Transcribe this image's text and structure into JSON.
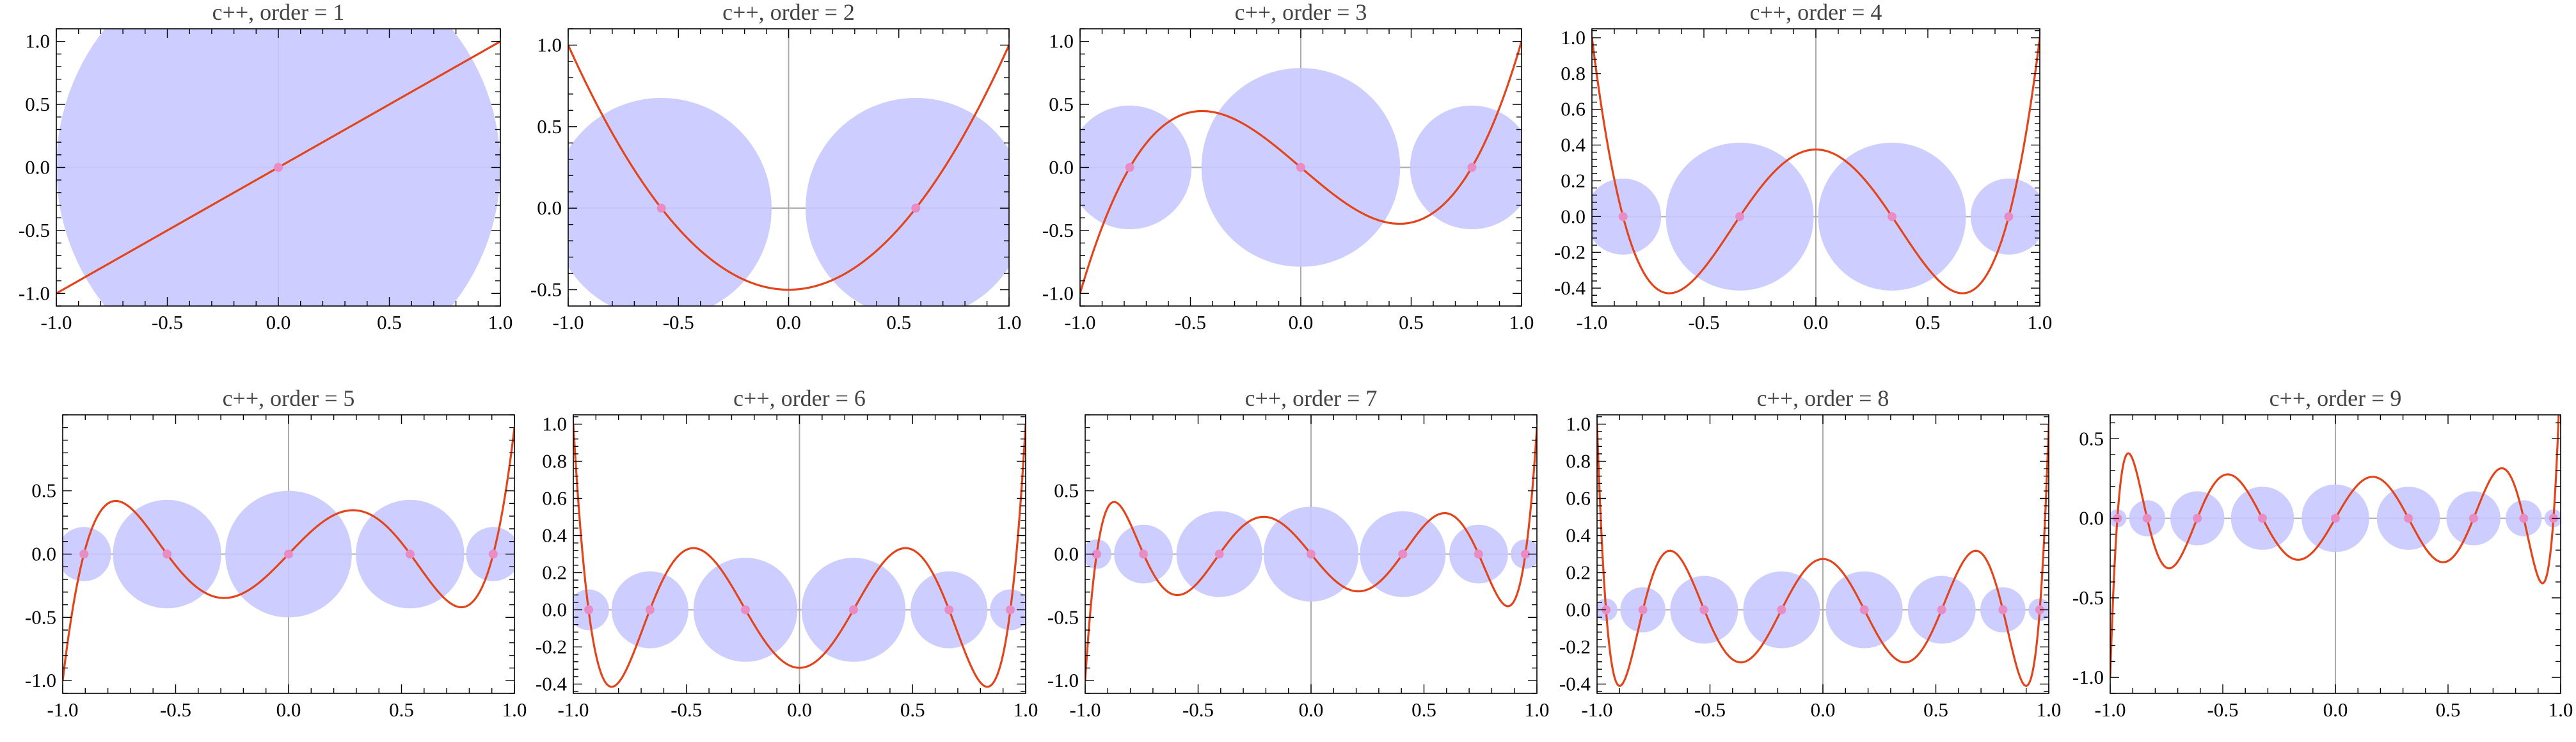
{
  "colors": {
    "curve": "#e2451c",
    "circle": "#c8c8ff",
    "root": "#ea8cc4",
    "axis": "#aaaaaa",
    "frame": "#000000"
  },
  "chart_data": [
    {
      "type": "line",
      "title": "c++, order = 1",
      "order": 1,
      "xlim": [
        -1.0,
        1.0
      ],
      "ylim": [
        -1.1,
        1.1
      ],
      "x_ticks": [
        "-1.0",
        "-0.5",
        "0.0",
        "0.5",
        "1.0"
      ],
      "y_ticks": [
        "-1.0",
        "-0.5",
        "0.0",
        "0.5",
        "1.0"
      ],
      "roots": [
        0.0
      ],
      "circle_radii": [
        1.0
      ]
    },
    {
      "type": "line",
      "title": "c++, order = 2",
      "order": 2,
      "xlim": [
        -1.0,
        1.0
      ],
      "ylim": [
        -0.6,
        1.1
      ],
      "x_ticks": [
        "-1.0",
        "-0.5",
        "0.0",
        "0.5",
        "1.0"
      ],
      "y_ticks": [
        "-0.5",
        "0.0",
        "0.5",
        "1.0"
      ],
      "roots": [
        -0.577,
        0.577
      ],
      "circle_radii": [
        0.5,
        0.5
      ]
    },
    {
      "type": "line",
      "title": "c++, order = 3",
      "order": 3,
      "xlim": [
        -1.0,
        1.0
      ],
      "ylim": [
        -1.1,
        1.1
      ],
      "x_ticks": [
        "-1.0",
        "-0.5",
        "0.0",
        "0.5",
        "1.0"
      ],
      "y_ticks": [
        "-1.0",
        "-0.5",
        "0.0",
        "0.5",
        "1.0"
      ],
      "roots": [
        -0.775,
        0.0,
        0.775
      ],
      "circle_radii": [
        0.28,
        0.45,
        0.28
      ]
    },
    {
      "type": "line",
      "title": "c++, order = 4",
      "order": 4,
      "xlim": [
        -1.0,
        1.0
      ],
      "ylim": [
        -0.5,
        1.05
      ],
      "x_ticks": [
        "-1.0",
        "-0.5",
        "0.0",
        "0.5",
        "1.0"
      ],
      "y_ticks": [
        "-0.4",
        "-0.2",
        "0.0",
        "0.2",
        "0.4",
        "0.6",
        "0.8",
        "1.0"
      ],
      "roots": [
        -0.861,
        -0.34,
        0.34,
        0.861
      ],
      "circle_radii": [
        0.17,
        0.33,
        0.33,
        0.17
      ]
    },
    {
      "type": "line",
      "title": "c++, order = 5",
      "order": 5,
      "xlim": [
        -1.0,
        1.0
      ],
      "ylim": [
        -1.1,
        1.1
      ],
      "x_ticks": [
        "-1.0",
        "-0.5",
        "0.0",
        "0.5",
        "1.0"
      ],
      "y_ticks": [
        "-1.0",
        "-0.5",
        "0.0",
        "0.5"
      ],
      "roots": [
        -0.906,
        -0.538,
        0.0,
        0.538,
        0.906
      ],
      "circle_radii": [
        0.12,
        0.24,
        0.28,
        0.24,
        0.12
      ]
    },
    {
      "type": "line",
      "title": "c++, order = 6",
      "order": 6,
      "xlim": [
        -1.0,
        1.0
      ],
      "ylim": [
        -0.45,
        1.05
      ],
      "x_ticks": [
        "-1.0",
        "-0.5",
        "0.0",
        "0.5",
        "1.0"
      ],
      "y_ticks": [
        "-0.4",
        "-0.2",
        "0.0",
        "0.2",
        "0.4",
        "0.6",
        "0.8",
        "1.0"
      ],
      "roots": [
        -0.932,
        -0.661,
        -0.239,
        0.239,
        0.661,
        0.932
      ],
      "circle_radii": [
        0.09,
        0.17,
        0.23,
        0.23,
        0.17,
        0.09
      ]
    },
    {
      "type": "line",
      "title": "c++, order = 7",
      "order": 7,
      "xlim": [
        -1.0,
        1.0
      ],
      "ylim": [
        -1.1,
        1.1
      ],
      "x_ticks": [
        "-1.0",
        "-0.5",
        "0.0",
        "0.5",
        "1.0"
      ],
      "y_ticks": [
        "-1.0",
        "-0.5",
        "0.0",
        "0.5"
      ],
      "roots": [
        -0.949,
        -0.742,
        -0.406,
        0.0,
        0.406,
        0.742,
        0.949
      ],
      "circle_radii": [
        0.065,
        0.13,
        0.19,
        0.21,
        0.19,
        0.13,
        0.065
      ]
    },
    {
      "type": "line",
      "title": "c++, order = 8",
      "order": 8,
      "xlim": [
        -1.0,
        1.0
      ],
      "ylim": [
        -0.45,
        1.05
      ],
      "x_ticks": [
        "-1.0",
        "-0.5",
        "0.0",
        "0.5",
        "1.0"
      ],
      "y_ticks": [
        "-0.4",
        "-0.2",
        "0.0",
        "0.2",
        "0.4",
        "0.6",
        "0.8",
        "1.0"
      ],
      "roots": [
        -0.96,
        -0.797,
        -0.526,
        -0.183,
        0.183,
        0.526,
        0.797,
        0.96
      ],
      "circle_radii": [
        0.05,
        0.1,
        0.15,
        0.17,
        0.17,
        0.15,
        0.1,
        0.05
      ]
    },
    {
      "type": "line",
      "title": "c++, order = 9",
      "order": 9,
      "xlim": [
        -1.0,
        1.0
      ],
      "ylim": [
        -1.1,
        0.65
      ],
      "x_ticks": [
        "-1.0",
        "-0.5",
        "0.0",
        "0.5",
        "1.0"
      ],
      "y_ticks": [
        "-1.0",
        "-0.5",
        "0.0",
        "0.5"
      ],
      "roots": [
        -0.968,
        -0.836,
        -0.613,
        -0.324,
        0.0,
        0.324,
        0.613,
        0.836,
        0.968
      ],
      "circle_radii": [
        0.04,
        0.08,
        0.12,
        0.14,
        0.15,
        0.14,
        0.12,
        0.08,
        0.04
      ]
    }
  ]
}
